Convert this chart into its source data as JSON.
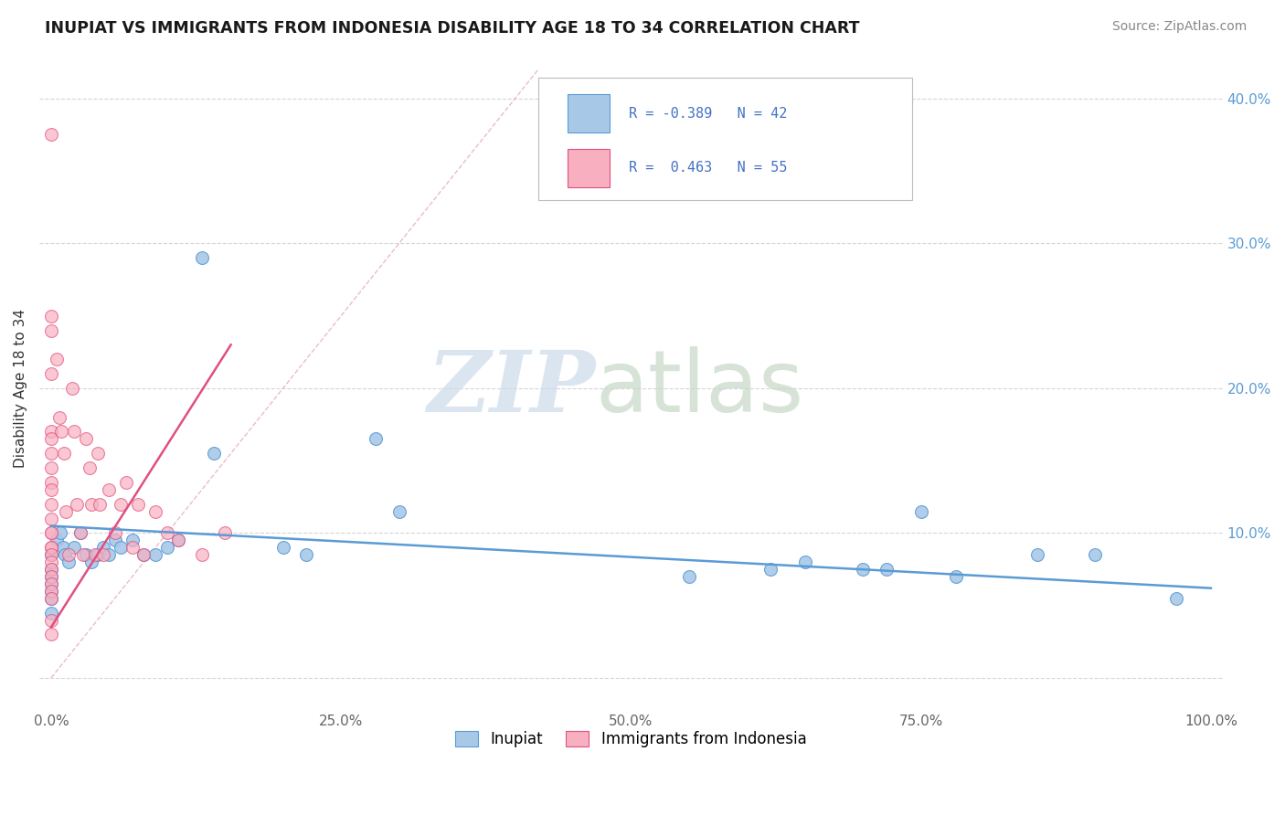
{
  "title": "INUPIAT VS IMMIGRANTS FROM INDONESIA DISABILITY AGE 18 TO 34 CORRELATION CHART",
  "source": "Source: ZipAtlas.com",
  "ylabel": "Disability Age 18 to 34",
  "xlim": [
    -0.01,
    1.01
  ],
  "ylim": [
    -0.022,
    0.422
  ],
  "xticks": [
    0.0,
    0.25,
    0.5,
    0.75,
    1.0
  ],
  "xtick_labels": [
    "0.0%",
    "25.0%",
    "50.0%",
    "75.0%",
    "100.0%"
  ],
  "yticks": [
    0.0,
    0.1,
    0.2,
    0.3,
    0.4
  ],
  "ytick_labels": [
    "",
    "10.0%",
    "20.0%",
    "30.0%",
    "40.0%"
  ],
  "watermark_zip": "ZIP",
  "watermark_atlas": "atlas",
  "color_inupiat": "#a8c8e8",
  "color_indonesia": "#f8b0c0",
  "color_line_inupiat": "#5b9bd5",
  "color_line_indonesia": "#e05080",
  "color_legend_text": "#4472c4",
  "background_color": "#ffffff",
  "grid_color": "#cccccc",
  "inupiat_x": [
    0.0,
    0.0,
    0.0,
    0.0,
    0.0,
    0.0,
    0.0,
    0.005,
    0.008,
    0.01,
    0.012,
    0.015,
    0.02,
    0.025,
    0.03,
    0.035,
    0.04,
    0.045,
    0.05,
    0.055,
    0.06,
    0.07,
    0.08,
    0.09,
    0.1,
    0.11,
    0.13,
    0.14,
    0.2,
    0.22,
    0.28,
    0.3,
    0.55,
    0.62,
    0.65,
    0.7,
    0.72,
    0.75,
    0.78,
    0.85,
    0.9,
    0.97
  ],
  "inupiat_y": [
    0.085,
    0.075,
    0.07,
    0.065,
    0.06,
    0.055,
    0.045,
    0.095,
    0.1,
    0.09,
    0.085,
    0.08,
    0.09,
    0.1,
    0.085,
    0.08,
    0.085,
    0.09,
    0.085,
    0.095,
    0.09,
    0.095,
    0.085,
    0.085,
    0.09,
    0.095,
    0.29,
    0.155,
    0.09,
    0.085,
    0.165,
    0.115,
    0.07,
    0.075,
    0.08,
    0.075,
    0.075,
    0.115,
    0.07,
    0.085,
    0.085,
    0.055
  ],
  "indonesia_x": [
    0.0,
    0.0,
    0.0,
    0.0,
    0.0,
    0.0,
    0.0,
    0.0,
    0.0,
    0.0,
    0.0,
    0.0,
    0.0,
    0.0,
    0.0,
    0.0,
    0.0,
    0.0,
    0.0,
    0.0,
    0.0,
    0.0,
    0.0,
    0.0,
    0.0,
    0.005,
    0.007,
    0.009,
    0.011,
    0.013,
    0.015,
    0.018,
    0.02,
    0.022,
    0.025,
    0.028,
    0.03,
    0.033,
    0.035,
    0.038,
    0.04,
    0.042,
    0.045,
    0.05,
    0.055,
    0.06,
    0.065,
    0.07,
    0.075,
    0.08,
    0.09,
    0.1,
    0.11,
    0.13,
    0.15
  ],
  "indonesia_y": [
    0.375,
    0.25,
    0.24,
    0.21,
    0.17,
    0.165,
    0.155,
    0.145,
    0.135,
    0.13,
    0.12,
    0.11,
    0.1,
    0.1,
    0.09,
    0.09,
    0.085,
    0.08,
    0.075,
    0.07,
    0.065,
    0.06,
    0.055,
    0.04,
    0.03,
    0.22,
    0.18,
    0.17,
    0.155,
    0.115,
    0.085,
    0.2,
    0.17,
    0.12,
    0.1,
    0.085,
    0.165,
    0.145,
    0.12,
    0.085,
    0.155,
    0.12,
    0.085,
    0.13,
    0.1,
    0.12,
    0.135,
    0.09,
    0.12,
    0.085,
    0.115,
    0.1,
    0.095,
    0.085,
    0.1
  ],
  "inupiat_trend_x0": 0.0,
  "inupiat_trend_x1": 1.0,
  "inupiat_trend_y0": 0.105,
  "inupiat_trend_y1": 0.062,
  "indonesia_trend_x0": 0.0,
  "indonesia_trend_x1": 0.155,
  "indonesia_trend_y0": 0.035,
  "indonesia_trend_y1": 0.23,
  "diag_line_x0": 0.0,
  "diag_line_x1": 0.42,
  "diag_line_y0": 0.0,
  "diag_line_y1": 0.42
}
